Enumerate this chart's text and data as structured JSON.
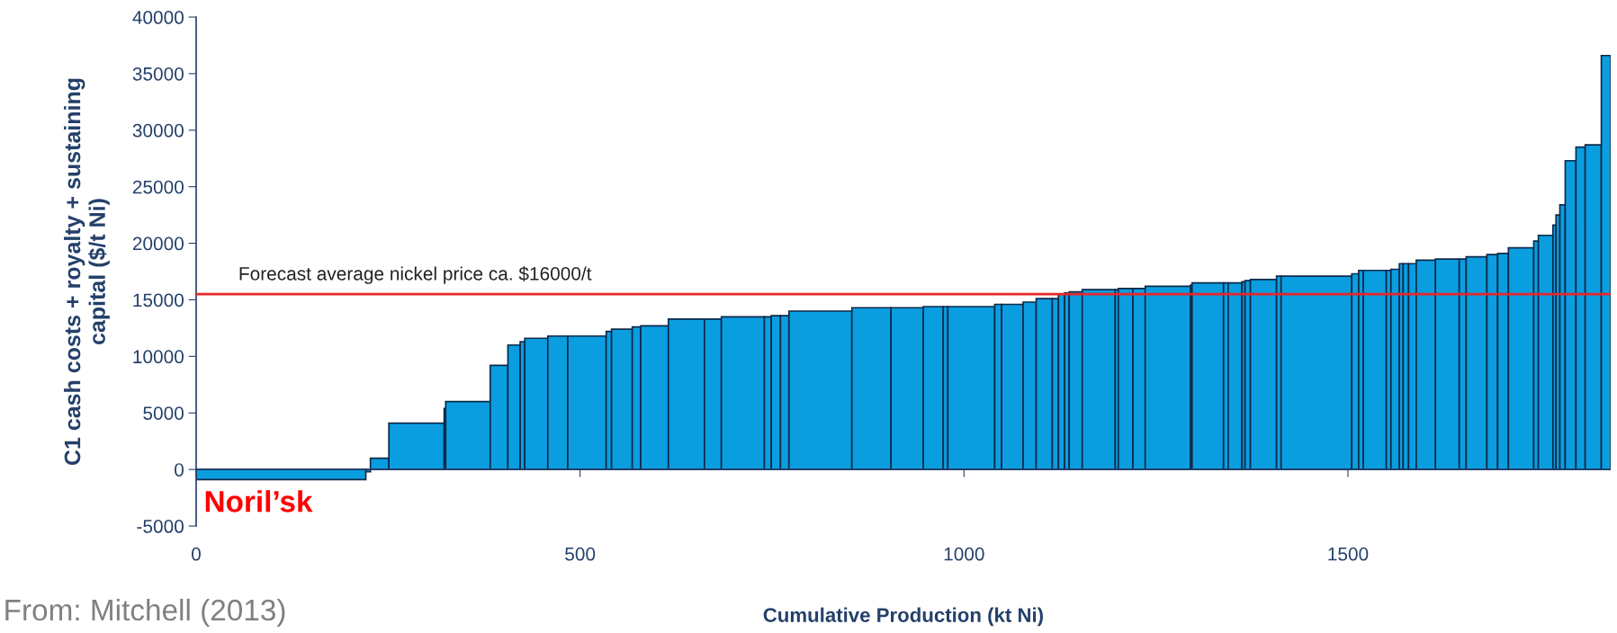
{
  "chart_data": {
    "type": "histogram",
    "xlabel": "Cumulative Production (kt Ni)",
    "ylabel": "C1 cash costs + royalty + sustaining\ncapital ($/t Ni)",
    "bins": [
      0,
      221,
      227,
      251,
      323,
      325,
      383,
      406,
      422,
      428,
      458,
      484,
      534,
      541,
      568,
      579,
      615,
      662,
      684,
      740,
      749,
      761,
      772,
      854,
      905,
      947,
      973,
      979,
      1040,
      1049,
      1077,
      1094,
      1115,
      1123,
      1131,
      1137,
      1154,
      1197,
      1201,
      1220,
      1236,
      1295,
      1297,
      1338,
      1344,
      1362,
      1366,
      1373,
      1407,
      1413,
      1505,
      1514,
      1520,
      1550,
      1556,
      1567,
      1572,
      1579,
      1589,
      1614,
      1645,
      1654,
      1681,
      1695,
      1709,
      1742,
      1748,
      1767,
      1771,
      1776,
      1783,
      1797,
      1809,
      1830,
      1842
    ],
    "values": [
      -900,
      -200,
      1000,
      4100,
      5400,
      6000,
      9200,
      11000,
      11300,
      11600,
      11800,
      11800,
      12200,
      12400,
      12600,
      12700,
      13300,
      13300,
      13500,
      13500,
      13600,
      13600,
      14000,
      14300,
      14300,
      14400,
      14400,
      14400,
      14600,
      14600,
      14800,
      15100,
      15100,
      15500,
      15600,
      15700,
      15900,
      15900,
      16000,
      16000,
      16200,
      16300,
      16500,
      16500,
      16500,
      16600,
      16700,
      16800,
      17100,
      17100,
      17300,
      17600,
      17600,
      17600,
      17700,
      18200,
      18200,
      18200,
      18500,
      18600,
      18600,
      18800,
      19000,
      19100,
      19600,
      20200,
      20700,
      21600,
      22500,
      23400,
      27300,
      28500,
      28700,
      36600
    ],
    "color": "#0a9ee0",
    "xlim": [
      0,
      1842
    ],
    "xticks": [
      0,
      500,
      1000,
      1500
    ],
    "ylim": [
      -5000,
      40000
    ],
    "yticks": [
      -5000,
      0,
      5000,
      10000,
      15000,
      20000,
      25000,
      30000,
      35000,
      40000
    ],
    "ref_lines": [
      {
        "axis": "y",
        "value": 0,
        "color": "#24406a"
      },
      {
        "axis": "y",
        "value": 15500,
        "label": "Forecast average nickel price ca. $16000/t",
        "color": "#e8262b"
      }
    ],
    "annotations": [
      "Noril’sk",
      "From: Mitchell (2013)"
    ],
    "grid": false,
    "legend": false
  }
}
